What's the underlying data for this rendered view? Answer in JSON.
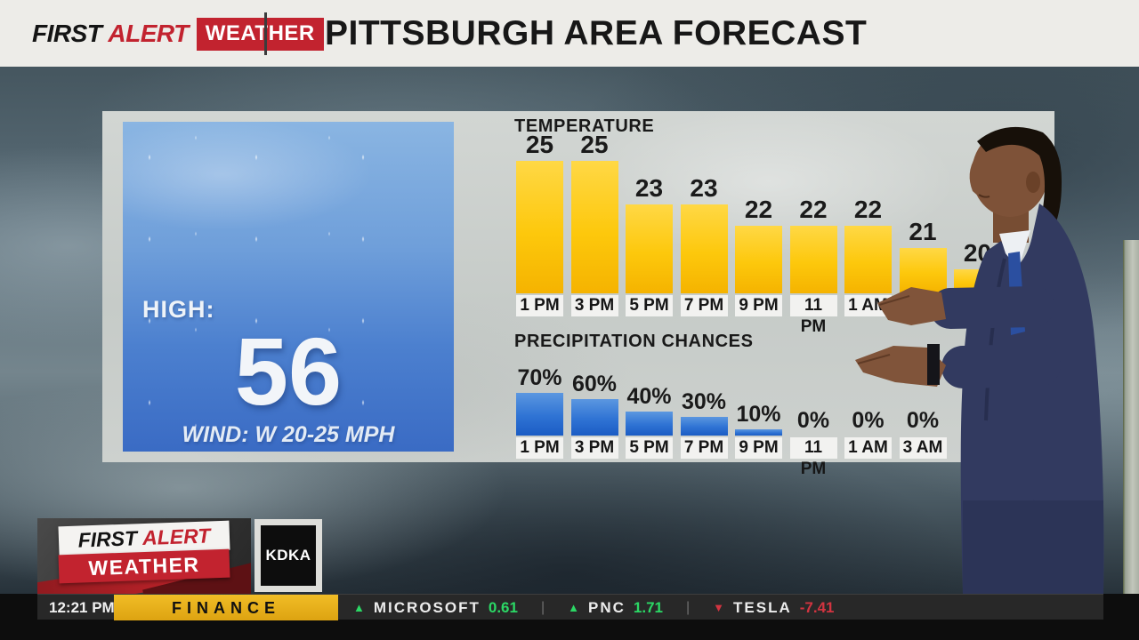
{
  "header": {
    "brand": {
      "first": "FIRST",
      "alert": "ALERT",
      "weather": "WEATHER"
    },
    "title": "PITTSBURGH AREA FORECAST"
  },
  "forecast_card": {
    "high_label": "HIGH:",
    "high_value": "56",
    "wind": "WIND: W 20-25 MPH"
  },
  "chart_data": [
    {
      "type": "bar",
      "title": "TEMPERATURE",
      "categories": [
        "1 PM",
        "3 PM",
        "5 PM",
        "7 PM",
        "9 PM",
        "11 PM",
        "1 AM",
        "",
        ""
      ],
      "values": [
        25,
        25,
        23,
        23,
        22,
        22,
        22,
        21,
        20
      ],
      "value_labels": "above bars",
      "axis": "none",
      "legend": "none",
      "bar_color_top": "#ffd845",
      "bar_color_bottom": "#f5b300"
    },
    {
      "type": "bar",
      "title": "PRECIPITATION CHANCES",
      "categories": [
        "1 PM",
        "3 PM",
        "5 PM",
        "7 PM",
        "9 PM",
        "11 PM",
        "1 AM",
        "3 AM"
      ],
      "values": [
        70,
        60,
        40,
        30,
        10,
        0,
        0,
        0
      ],
      "unit": "%",
      "ylim": [
        0,
        100
      ],
      "value_labels": "above bars",
      "axis": "none",
      "legend": "none",
      "bar_color_top": "#5b97e0",
      "bar_color_bottom": "#1b5cc4"
    }
  ],
  "bug": {
    "first": "FIRST",
    "alert": "ALERT",
    "weather": "WEATHER",
    "station": "KDKA"
  },
  "ticker": {
    "time": "12:21 PM",
    "category": "FINANCE",
    "up_color": "#2bd865",
    "down_color": "#d23440",
    "stocks": [
      {
        "symbol": "MICROSOFT",
        "change": "0.61",
        "direction": "up"
      },
      {
        "symbol": "PNC",
        "change": "1.71",
        "direction": "up"
      },
      {
        "symbol": "TESLA",
        "change": "-7.41",
        "direction": "down"
      }
    ]
  }
}
